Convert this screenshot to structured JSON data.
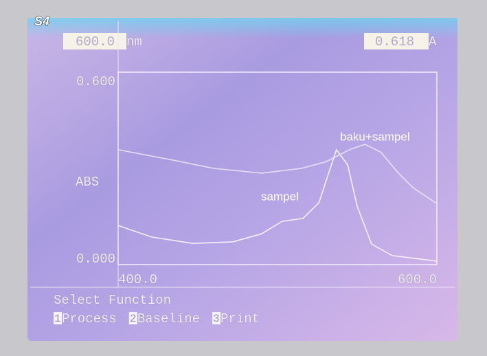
{
  "brand": "S4",
  "readout": {
    "wavelength": "600.0",
    "wavelength_unit": "nm",
    "absorbance": "0.618",
    "absorbance_unit": "A"
  },
  "menu": {
    "title": "Select Function",
    "items": [
      {
        "key": "1",
        "label": "Process"
      },
      {
        "key": "2",
        "label": "Baseline"
      },
      {
        "key": "3",
        "label": "Print"
      }
    ]
  },
  "chart_data": {
    "type": "line",
    "ylabel": "ABS",
    "xlim": [
      400,
      600
    ],
    "xticks": [
      {
        "value": 400,
        "label": "400.0"
      },
      {
        "value": 600,
        "label": "600.0"
      }
    ],
    "ylim": [
      0,
      0.6
    ],
    "yticks": [
      {
        "value": 0,
        "label": "0.000"
      },
      {
        "value": 0.6,
        "label": "0.600"
      }
    ],
    "series": [
      {
        "name": "sampel",
        "color": "#f6f0fb",
        "x": [
          400,
          421,
          447,
          472,
          490,
          503,
          516,
          526,
          537,
          544,
          550,
          559,
          572,
          600
        ],
        "values": [
          0.122,
          0.086,
          0.066,
          0.071,
          0.096,
          0.135,
          0.144,
          0.193,
          0.358,
          0.311,
          0.182,
          0.064,
          0.028,
          0.011
        ]
      },
      {
        "name": "baku+sampel",
        "color": "#e8e0f2",
        "x": [
          400,
          430,
          460,
          490,
          515,
          530,
          546,
          555,
          565,
          575,
          585,
          600
        ],
        "values": [
          0.358,
          0.33,
          0.3,
          0.285,
          0.3,
          0.32,
          0.36,
          0.375,
          0.35,
          0.29,
          0.24,
          0.19
        ]
      }
    ]
  }
}
